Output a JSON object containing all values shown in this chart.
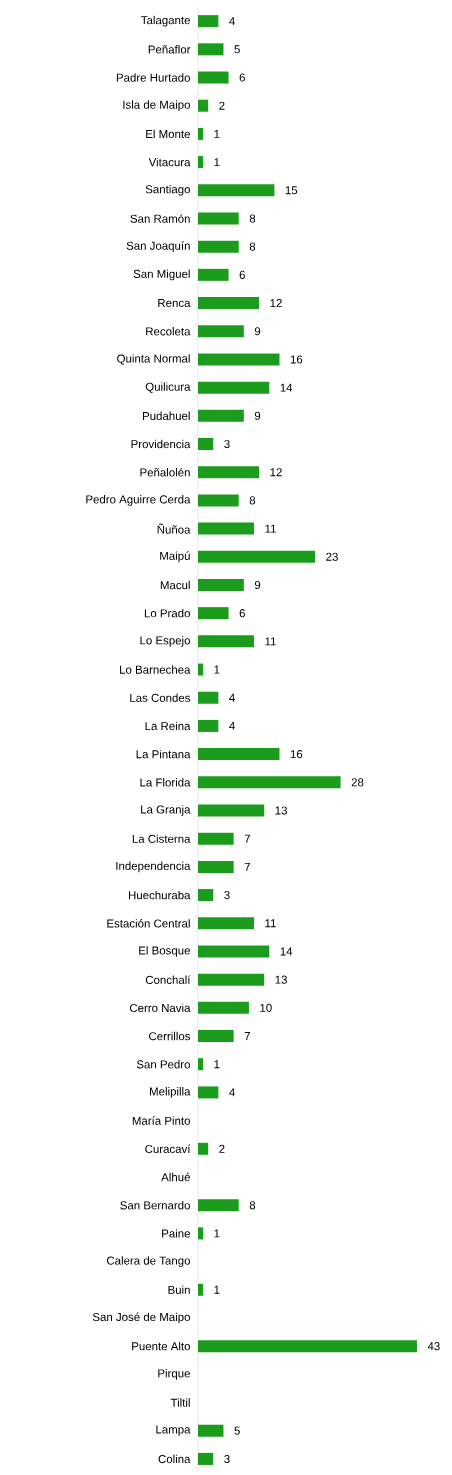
{
  "chart_data": {
    "type": "bar",
    "orientation": "horizontal",
    "color": "#1c9c1c",
    "categories": [
      "Talagante",
      "Peñaflor",
      "Padre Hurtado",
      "Isla de Maipo",
      "El Monte",
      "Vitacura",
      "Santiago",
      "San Ramón",
      "San Joaquín",
      "San Miguel",
      "Renca",
      "Recoleta",
      "Quinta Normal",
      "Quilicura",
      "Pudahuel",
      "Providencia",
      "Peñalolén",
      "Pedro Aguirre Cerda",
      "Ñuñoa",
      "Maipú",
      "Macul",
      "Lo Prado",
      "Lo Espejo",
      "Lo Barnechea",
      "Las Condes",
      "La Reina",
      "La Pintana",
      "La Florida",
      "La Granja",
      "La Cisterna",
      "Independencia",
      "Huechuraba",
      "Estación Central",
      "El Bosque",
      "Conchalí",
      "Cerro Navia",
      "Cerrillos",
      "San Pedro",
      "Melipilla",
      "María Pinto",
      "Curacaví",
      "Alhué",
      "San Bernardo",
      "Paine",
      "Calera de Tango",
      "Buin",
      "San José de Maipo",
      "Puente Alto",
      "Pirque",
      "Tiltil",
      "Lampa",
      "Colina"
    ],
    "values": [
      4,
      5,
      6,
      2,
      1,
      1,
      15,
      8,
      8,
      6,
      12,
      9,
      16,
      14,
      9,
      3,
      12,
      8,
      11,
      23,
      9,
      6,
      11,
      1,
      4,
      4,
      16,
      28,
      13,
      7,
      7,
      3,
      11,
      14,
      13,
      10,
      7,
      1,
      4,
      0,
      2,
      0,
      8,
      1,
      0,
      1,
      0,
      43,
      0,
      0,
      5,
      3
    ],
    "value_labels": [
      "4",
      "5",
      "6",
      "2",
      "1",
      "1",
      "15",
      "8",
      "8",
      "6",
      "12",
      "9",
      "16",
      "14",
      "9",
      "3",
      "12",
      "8",
      "11",
      "23",
      "9",
      "6",
      "11",
      "1",
      "4",
      "4",
      "16",
      "28",
      "13",
      "7",
      "7",
      "3",
      "11",
      "14",
      "13",
      "10",
      "7",
      "1",
      "4",
      null,
      "2",
      null,
      "8",
      "1",
      null,
      "1",
      null,
      "43",
      null,
      null,
      "5",
      "3"
    ]
  }
}
